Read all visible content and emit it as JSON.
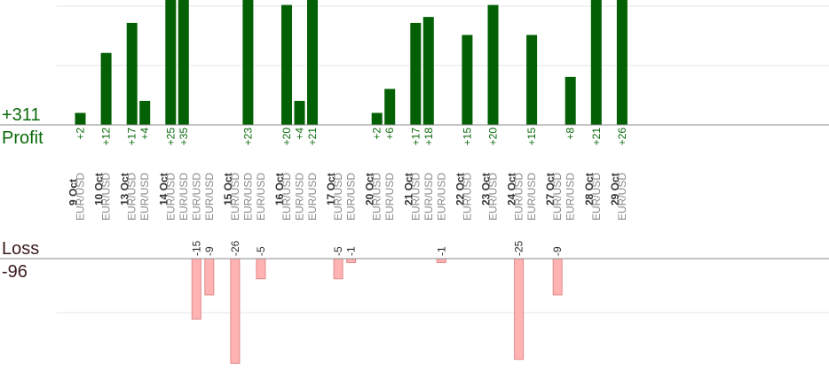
{
  "summary": {
    "profit_total": "+311",
    "profit_label": "Profit",
    "loss_label": "Loss",
    "loss_total": "-96"
  },
  "colors": {
    "profit": "#046004",
    "profit_text": "#0b6a0b",
    "loss_fill": "#ffb3b3",
    "loss_stroke": "#e08a8a",
    "grid": "#e4e4e4",
    "axis": "#888888",
    "date": "#333333",
    "pair": "#888888"
  },
  "chart_data": {
    "type": "bar",
    "pair": "EUR/USD",
    "days": [
      {
        "date": "9 Oct",
        "trades": [
          2
        ]
      },
      {
        "date": "10 Oct",
        "trades": [
          12
        ]
      },
      {
        "date": "13 Oct",
        "trades": [
          17,
          4
        ]
      },
      {
        "date": "14 Oct",
        "trades": [
          25,
          35,
          -15,
          -9
        ]
      },
      {
        "date": "15 Oct",
        "trades": [
          -26,
          23,
          -5
        ]
      },
      {
        "date": "16 Oct",
        "trades": [
          20,
          4,
          21
        ]
      },
      {
        "date": "17 Oct",
        "trades": [
          -5,
          -1
        ]
      },
      {
        "date": "20 Oct",
        "trades": [
          2,
          6
        ]
      },
      {
        "date": "21 Oct",
        "trades": [
          17,
          18,
          -1
        ]
      },
      {
        "date": "22 Oct",
        "trades": [
          15
        ]
      },
      {
        "date": "23 Oct",
        "trades": [
          20
        ]
      },
      {
        "date": "24 Oct",
        "trades": [
          -25,
          15
        ]
      },
      {
        "date": "27 Oct",
        "trades": [
          -9,
          8
        ]
      },
      {
        "date": "28 Oct",
        "trades": [
          21
        ]
      },
      {
        "date": "29 Oct",
        "trades": [
          26
        ]
      }
    ]
  }
}
